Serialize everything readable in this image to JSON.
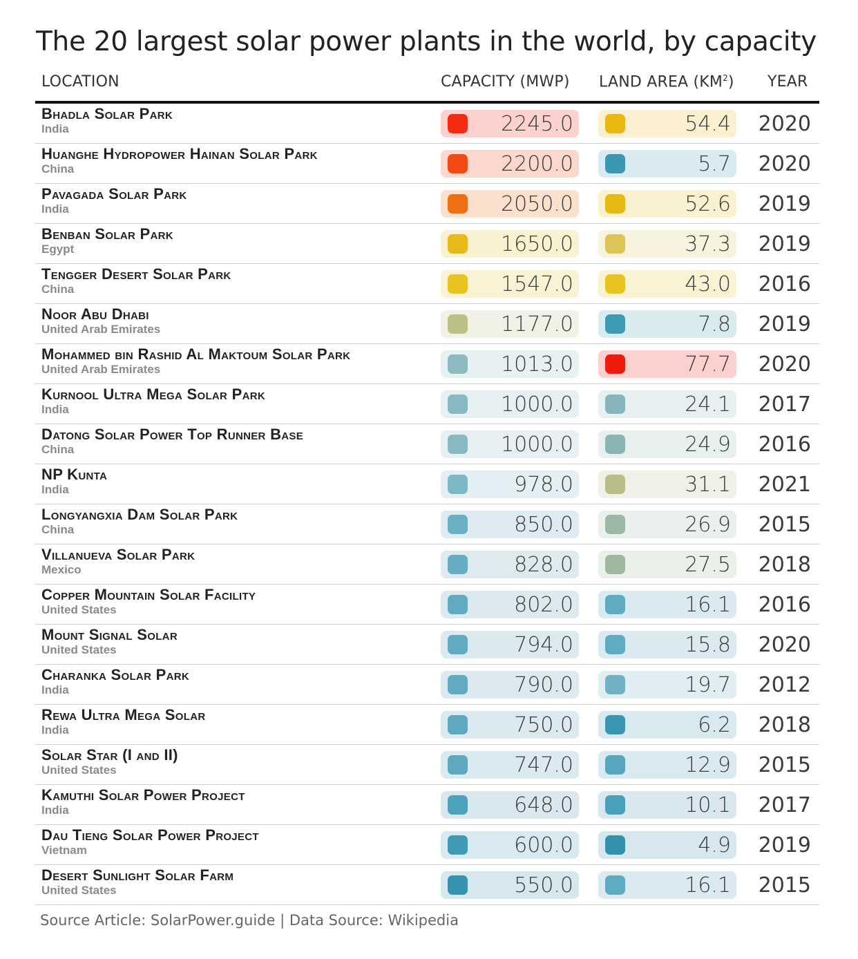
{
  "title": "The 20 largest solar power plants in the world, by capacity",
  "headers": {
    "location": "LOCATION",
    "capacity": "CAPACITY (MWP)",
    "land_area": "LAND AREA (KM",
    "land_area_sup": "2",
    "land_area_close": ")",
    "year": "YEAR"
  },
  "source": "Source Article: SolarPower.guide | Data Source: Wikipedia",
  "chart_data": {
    "type": "table",
    "columns": [
      "LOCATION",
      "CAPACITY (MWP)",
      "LAND AREA (KM²)",
      "YEAR"
    ],
    "rows": [
      {
        "name": "Bhadla Solar Park",
        "country": "India",
        "capacity": "2245.0",
        "land": "54.4",
        "year": "2020",
        "cap_color": "#f42b12",
        "cap_bg": "#fcd1ce",
        "land_color": "#e8b712",
        "land_bg": "#faf0cf"
      },
      {
        "name": "Huanghe Hydropower Hainan Solar Park",
        "country": "China",
        "capacity": "2200.0",
        "land": "5.7",
        "year": "2020",
        "cap_color": "#f34a14",
        "cap_bg": "#fcd7cd",
        "land_color": "#3c97b2",
        "land_bg": "#d9eaf0"
      },
      {
        "name": "Pavagada Solar Park",
        "country": "India",
        "capacity": "2050.0",
        "land": "52.6",
        "year": "2019",
        "cap_color": "#ee7010",
        "cap_bg": "#fbe0ce",
        "land_color": "#e6b915",
        "land_bg": "#faf1d0"
      },
      {
        "name": "Benban Solar Park",
        "country": "Egypt",
        "capacity": "1650.0",
        "land": "37.3",
        "year": "2019",
        "cap_color": "#e7b91b",
        "cap_bg": "#faf1d1",
        "land_color": "#dcc459",
        "land_bg": "#f7f3de"
      },
      {
        "name": "Tengger Desert Solar Park",
        "country": "China",
        "capacity": "1547.0",
        "land": "43.0",
        "year": "2016",
        "cap_color": "#e8c421",
        "cap_bg": "#faf3d3",
        "land_color": "#e8c421",
        "land_bg": "#faf3d3"
      },
      {
        "name": "Noor Abu Dhabi",
        "country": "United Arab Emirates",
        "capacity": "1177.0",
        "land": "7.8",
        "year": "2019",
        "cap_color": "#bcbf86",
        "cap_bg": "#f1f1e6",
        "land_color": "#3f9ab4",
        "land_bg": "#daebf0"
      },
      {
        "name": "Mohammed bin Rashid Al Maktoum Solar Park",
        "country": "United Arab Emirates",
        "capacity": "1013.0",
        "land": "77.7",
        "year": "2020",
        "cap_color": "#8cbac0",
        "cap_bg": "#e7f1f2",
        "land_color": "#ee1c0f",
        "land_bg": "#fcd0ce"
      },
      {
        "name": "Kurnool Ultra Mega Solar Park",
        "country": "India",
        "capacity": "1000.0",
        "land": "24.1",
        "year": "2017",
        "cap_color": "#88b9c1",
        "cap_bg": "#e6f0f2",
        "land_color": "#86b6bc",
        "land_bg": "#e6f0f1"
      },
      {
        "name": "Datong Solar Power Top Runner Base",
        "country": "China",
        "capacity": "1000.0",
        "land": "24.9",
        "year": "2016",
        "cap_color": "#88b9c1",
        "cap_bg": "#e6f0f2",
        "land_color": "#8ab5b2",
        "land_bg": "#e7efef"
      },
      {
        "name": "NP Kunta",
        "country": "India",
        "capacity": "978.0",
        "land": "31.1",
        "year": "2021",
        "cap_color": "#7db8c6",
        "cap_bg": "#e3eff3",
        "land_color": "#b8bc86",
        "land_bg": "#f0f0e6"
      },
      {
        "name": "Longyangxia Dam Solar Park",
        "country": "China",
        "capacity": "850.0",
        "land": "26.9",
        "year": "2015",
        "cap_color": "#6aafc3",
        "cap_bg": "#deecf1",
        "land_color": "#9bb7a6",
        "land_bg": "#eaf0ec"
      },
      {
        "name": "Villanueva Solar Park",
        "country": "Mexico",
        "capacity": "828.0",
        "land": "27.5",
        "year": "2018",
        "cap_color": "#66adc3",
        "cap_bg": "#ddebf1",
        "land_color": "#a0b99e",
        "land_bg": "#ebf0ea"
      },
      {
        "name": "Copper Mountain Solar Facility",
        "country": "United States",
        "capacity": "802.0",
        "land": "16.1",
        "year": "2016",
        "cap_color": "#62aac1",
        "cap_bg": "#dceaf0",
        "land_color": "#5eabc2",
        "land_bg": "#dbeaf0"
      },
      {
        "name": "Mount Signal Solar",
        "country": "United States",
        "capacity": "794.0",
        "land": "15.8",
        "year": "2020",
        "cap_color": "#62aac1",
        "cap_bg": "#dceaf0",
        "land_color": "#5eabc2",
        "land_bg": "#dbeaf0"
      },
      {
        "name": "Charanka Solar Park",
        "country": "India",
        "capacity": "790.0",
        "land": "19.7",
        "year": "2012",
        "cap_color": "#61aac1",
        "cap_bg": "#dceaf0",
        "land_color": "#70b2c4",
        "land_bg": "#e0edf1"
      },
      {
        "name": "Rewa Ultra Mega Solar",
        "country": "India",
        "capacity": "750.0",
        "land": "6.2",
        "year": "2018",
        "cap_color": "#5ea8c0",
        "cap_bg": "#dbe9f0",
        "land_color": "#3a96b1",
        "land_bg": "#d8e9ef"
      },
      {
        "name": "Solar Star (I and II)",
        "country": "United States",
        "capacity": "747.0",
        "land": "12.9",
        "year": "2015",
        "cap_color": "#5ea8c0",
        "cap_bg": "#dbe9f0",
        "land_color": "#56a6be",
        "land_bg": "#dae9ef"
      },
      {
        "name": "Kamuthi Solar Power Project",
        "country": "India",
        "capacity": "648.0",
        "land": "10.1",
        "year": "2017",
        "cap_color": "#4ca1bb",
        "cap_bg": "#d9e8ef",
        "land_color": "#4aa0ba",
        "land_bg": "#d9e8ef"
      },
      {
        "name": "Dau Tieng Solar Power Project",
        "country": "Vietnam",
        "capacity": "600.0",
        "land": "4.9",
        "year": "2019",
        "cap_color": "#4099b5",
        "cap_bg": "#d8e9ef",
        "land_color": "#3391ae",
        "land_bg": "#d6e7ee"
      },
      {
        "name": "Desert Sunlight Solar Farm",
        "country": "United States",
        "capacity": "550.0",
        "land": "16.1",
        "year": "2015",
        "cap_color": "#3593b0",
        "cap_bg": "#d6e7ee",
        "land_color": "#5eabc2",
        "land_bg": "#dbeaf0"
      }
    ]
  }
}
